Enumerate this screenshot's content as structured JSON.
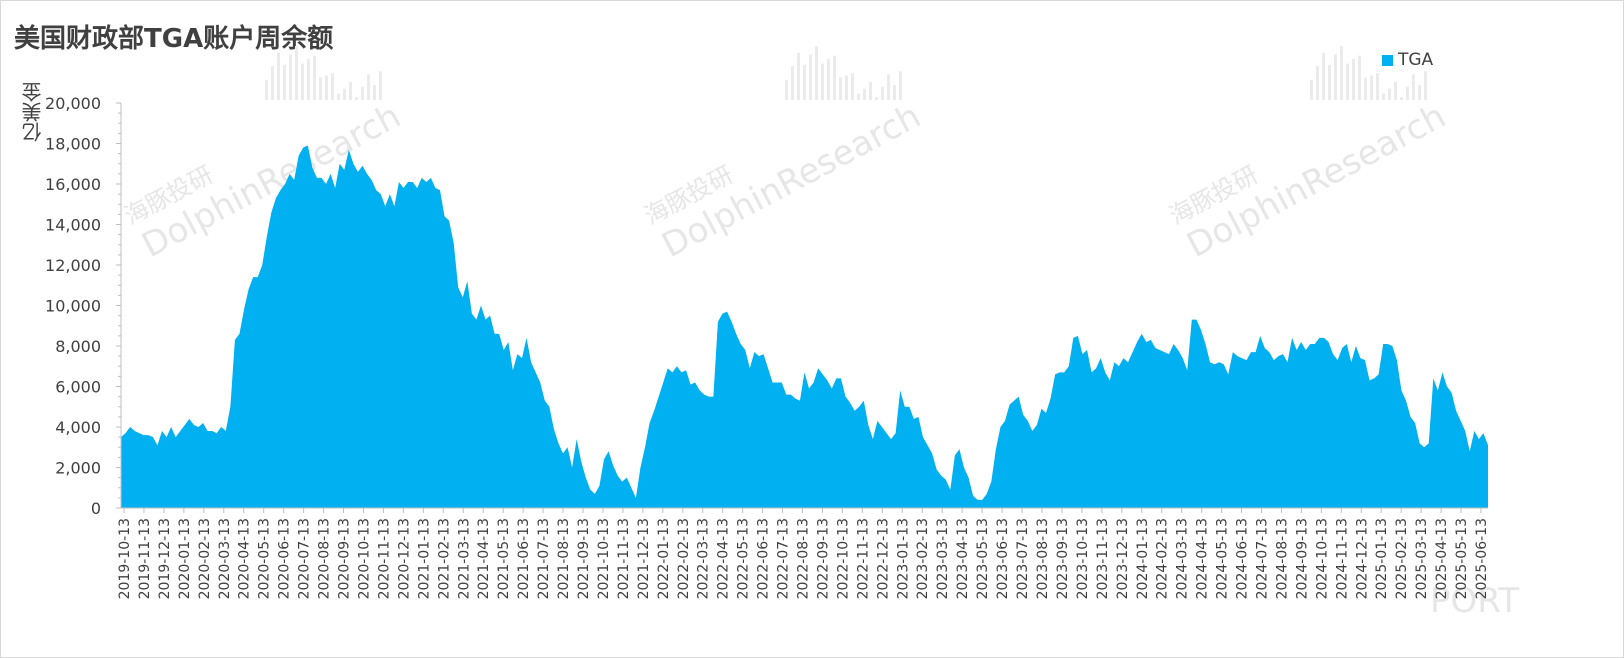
{
  "chart_data": {
    "type": "area",
    "title": "美国财政部TGA账户周余额",
    "ylabel": "亿美金",
    "xlabel": "",
    "ylim": [
      0,
      20000
    ],
    "yticks": [
      "0",
      "2,000",
      "4,000",
      "6,000",
      "8,000",
      "10,000",
      "12,000",
      "14,000",
      "16,000",
      "18,000",
      "20,000"
    ],
    "xticks": [
      "2019-10-13",
      "2019-11-13",
      "2019-12-13",
      "2020-01-13",
      "2020-02-13",
      "2020-03-13",
      "2020-04-13",
      "2020-05-13",
      "2020-06-13",
      "2020-07-13",
      "2020-08-13",
      "2020-09-13",
      "2020-10-13",
      "2020-11-13",
      "2020-12-13",
      "2021-01-13",
      "2021-02-13",
      "2021-03-13",
      "2021-04-13",
      "2021-05-13",
      "2021-06-13",
      "2021-07-13",
      "2021-08-13",
      "2021-09-13",
      "2021-10-13",
      "2021-11-13",
      "2021-12-13",
      "2022-01-13",
      "2022-02-13",
      "2022-03-13",
      "2022-04-13",
      "2022-05-13",
      "2022-06-13",
      "2022-07-13",
      "2022-08-13",
      "2022-09-13",
      "2022-10-13",
      "2022-11-13",
      "2022-12-13",
      "2023-01-13",
      "2023-02-13",
      "2023-03-13",
      "2023-04-13",
      "2023-05-13",
      "2023-06-13",
      "2023-07-13",
      "2023-08-13",
      "2023-09-13",
      "2023-10-13",
      "2023-11-13",
      "2023-12-13",
      "2024-01-13",
      "2024-02-13",
      "2024-03-13",
      "2024-04-13",
      "2024-05-13",
      "2024-06-13",
      "2024-07-13",
      "2024-08-13",
      "2024-09-13",
      "2024-10-13",
      "2024-11-13",
      "2024-12-13",
      "2025-01-13",
      "2025-02-13",
      "2025-03-13",
      "2025-04-13",
      "2025-05-13",
      "2025-06-13"
    ],
    "series": [
      {
        "name": "TGA",
        "color": "#00B0F0",
        "values": [
          3500,
          3700,
          4000,
          3800,
          3700,
          3600,
          3600,
          3500,
          3100,
          3800,
          3500,
          4000,
          3500,
          3800,
          4100,
          4400,
          4100,
          4000,
          4200,
          3800,
          3800,
          3700,
          4000,
          3800,
          5000,
          8300,
          8600,
          9800,
          10800,
          11400,
          11400,
          12000,
          13400,
          14600,
          15300,
          15700,
          16000,
          16500,
          16200,
          17400,
          17800,
          17900,
          16800,
          16300,
          16300,
          16000,
          16500,
          15800,
          17000,
          16700,
          17700,
          17000,
          16600,
          16900,
          16500,
          16200,
          15700,
          15500,
          14900,
          15500,
          14900,
          16100,
          15800,
          16100,
          16100,
          15800,
          16300,
          16100,
          16300,
          15800,
          15700,
          14400,
          14200,
          13100,
          10900,
          10400,
          11200,
          9600,
          9300,
          10000,
          9300,
          9500,
          8600,
          8600,
          7800,
          8200,
          6800,
          7600,
          7400,
          8400,
          7200,
          6700,
          6200,
          5300,
          5000,
          3900,
          3200,
          2700,
          3000,
          2000,
          3400,
          2300,
          1500,
          900,
          700,
          1100,
          2400,
          2800,
          2100,
          1600,
          1300,
          1500,
          1000,
          500,
          2000,
          3000,
          4200,
          4800,
          5500,
          6200,
          6900,
          6700,
          7000,
          6700,
          6800,
          6100,
          6200,
          5800,
          5600,
          5500,
          5500,
          9200,
          9600,
          9700,
          9200,
          8600,
          8100,
          7800,
          6900,
          7700,
          7500,
          7600,
          6900,
          6200,
          6200,
          6200,
          5600,
          5600,
          5400,
          5300,
          6700,
          5900,
          6200,
          6900,
          6600,
          6300,
          5900,
          6400,
          6400,
          5500,
          5200,
          4800,
          5000,
          5300,
          4100,
          3400,
          4300,
          4000,
          3700,
          3400,
          3700,
          5800,
          5000,
          5000,
          4400,
          4500,
          3500,
          3100,
          2700,
          1900,
          1600,
          1400,
          900,
          2600,
          2900,
          2000,
          1500,
          600,
          400,
          400,
          700,
          1300,
          2900,
          4000,
          4300,
          5100,
          5300,
          5500,
          4600,
          4300,
          3800,
          4100,
          4900,
          4700,
          5400,
          6600,
          6700,
          6700,
          7000,
          8400,
          8500,
          7600,
          7800,
          6700,
          6900,
          7400,
          6700,
          6300,
          7200,
          7000,
          7400,
          7200,
          7700,
          8200,
          8600,
          8200,
          8300,
          7900,
          7800,
          7700,
          7600,
          8100,
          7800,
          7400,
          6800,
          9300,
          9300,
          8800,
          8100,
          7200,
          7100,
          7200,
          7100,
          6600,
          7700,
          7500,
          7400,
          7300,
          7700,
          7700,
          8500,
          7900,
          7700,
          7300,
          7500,
          7600,
          7200,
          8400,
          7800,
          8200,
          7800,
          8100,
          8100,
          8400,
          8400,
          8200,
          7600,
          7300,
          7900,
          8100,
          7200,
          8000,
          7400,
          7300,
          6300,
          6400,
          6600,
          8100,
          8100,
          8000,
          7300,
          5800,
          5300,
          4500,
          4200,
          3200,
          3000,
          3200,
          6400,
          5800,
          6700,
          6000,
          5700,
          4800,
          4300,
          3800,
          2800,
          3800,
          3400,
          3700,
          3100
        ]
      }
    ],
    "legend": {
      "position": "top-right"
    }
  },
  "watermark": {
    "cn": "海豚投研",
    "en": "DolphinResearch",
    "corner": "PORT"
  }
}
